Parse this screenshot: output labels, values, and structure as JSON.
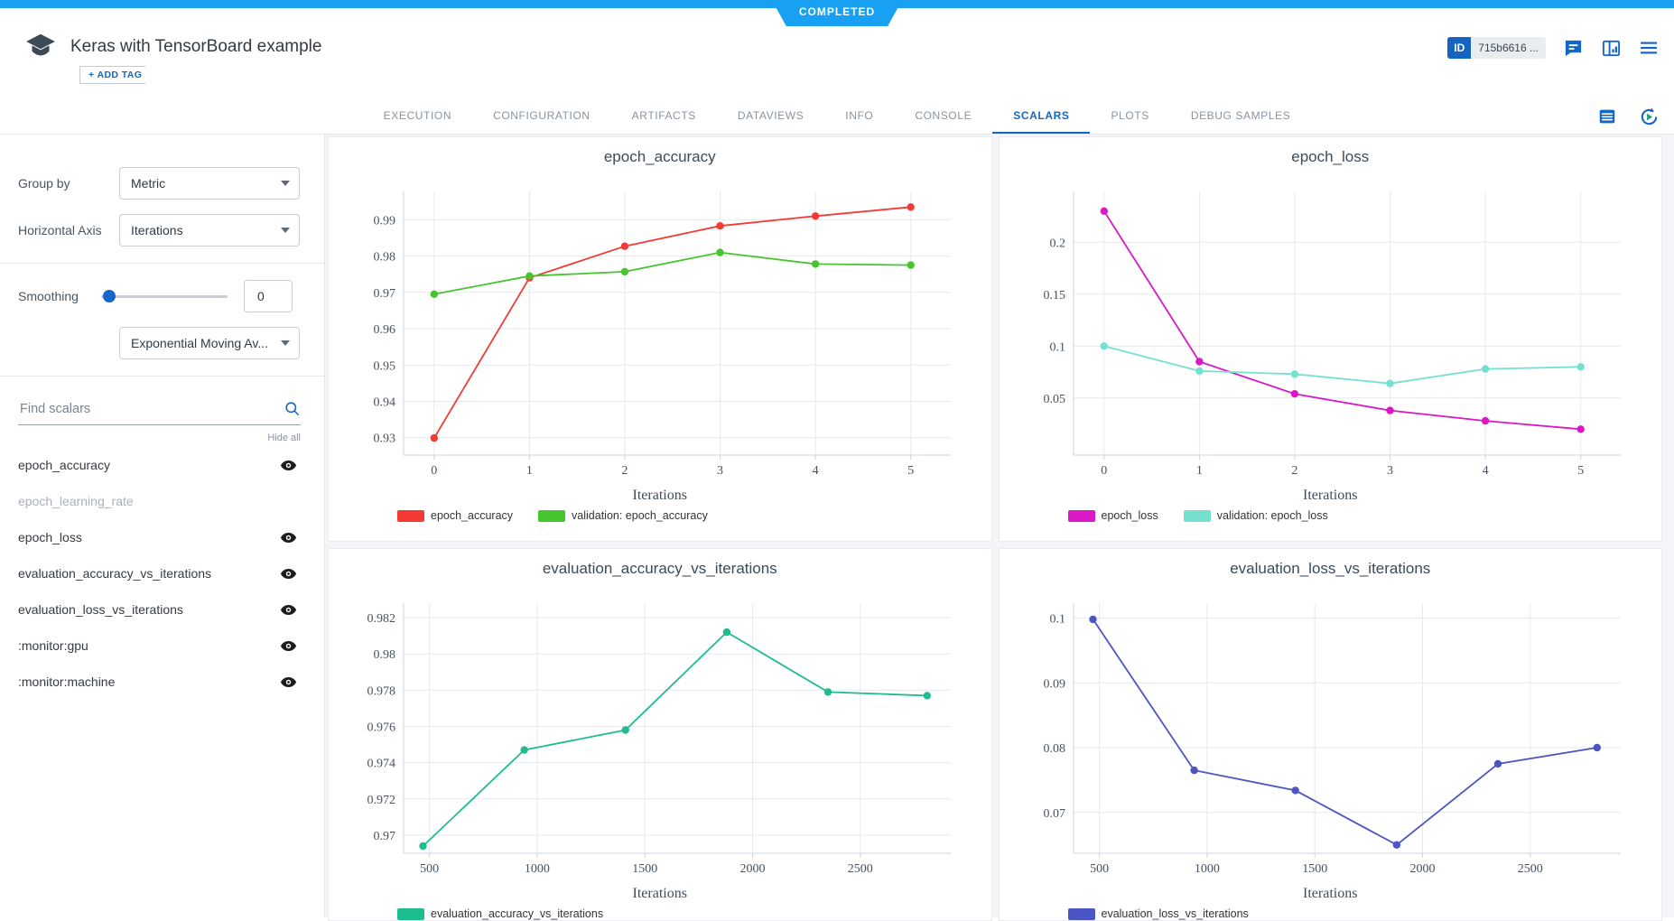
{
  "app": {
    "status": "COMPLETED",
    "title": "Keras with TensorBoard example",
    "add_tag": "+ ADD TAG",
    "id_label": "ID",
    "id_value": "715b6616 ...",
    "accent_color": "#18a1f2",
    "link_color": "#1467c6"
  },
  "icons": {
    "experiment": "graduation-cap",
    "comments": "message-lines",
    "layout": "split-panel",
    "menu": "hamburger",
    "table": "rows",
    "auto_refresh": "circular-arrow-play",
    "search": "magnifier",
    "visibility": "eye"
  },
  "tabs": {
    "items": [
      "EXECUTION",
      "CONFIGURATION",
      "ARTIFACTS",
      "DATAVIEWS",
      "INFO",
      "CONSOLE",
      "SCALARS",
      "PLOTS",
      "DEBUG SAMPLES"
    ],
    "active": "SCALARS"
  },
  "sidebar": {
    "group_by": {
      "label": "Group by",
      "value": "Metric"
    },
    "horizontal_axis": {
      "label": "Horizontal Axis",
      "value": "Iterations"
    },
    "smoothing": {
      "label": "Smoothing",
      "value": "0",
      "method": "Exponential Moving Av..."
    },
    "search": {
      "placeholder": "Find scalars"
    },
    "hide_all": "Hide all",
    "scalars": [
      {
        "name": "epoch_accuracy",
        "visible": true,
        "enabled": true
      },
      {
        "name": "epoch_learning_rate",
        "visible": false,
        "enabled": false
      },
      {
        "name": "epoch_loss",
        "visible": true,
        "enabled": true
      },
      {
        "name": "evaluation_accuracy_vs_iterations",
        "visible": true,
        "enabled": true
      },
      {
        "name": "evaluation_loss_vs_iterations",
        "visible": true,
        "enabled": true
      },
      {
        "name": ":monitor:gpu",
        "visible": true,
        "enabled": true
      },
      {
        "name": ":monitor:machine",
        "visible": true,
        "enabled": true
      }
    ]
  },
  "chart_data": [
    {
      "type": "line",
      "title": "epoch_accuracy",
      "xlabel": "Iterations",
      "x": [
        0,
        1,
        2,
        3,
        4,
        5
      ],
      "xticks": [
        0,
        1,
        2,
        3,
        4,
        5
      ],
      "xlim": [
        -0.32,
        5.42
      ],
      "yticks": [
        0.93,
        0.94,
        0.95,
        0.96,
        0.97,
        0.98,
        0.99
      ],
      "ylim": [
        0.9252,
        0.9978
      ],
      "grid": true,
      "legend_position": "bottom",
      "series": [
        {
          "name": "epoch_accuracy",
          "color": "#f23b35",
          "values": [
            0.9299,
            0.974,
            0.9827,
            0.9883,
            0.991,
            0.9935
          ]
        },
        {
          "name": "validation: epoch_accuracy",
          "color": "#46c52f",
          "values": [
            0.9695,
            0.9745,
            0.9757,
            0.981,
            0.9778,
            0.9775
          ]
        }
      ]
    },
    {
      "type": "line",
      "title": "epoch_loss",
      "xlabel": "Iterations",
      "x": [
        0,
        1,
        2,
        3,
        4,
        5
      ],
      "xticks": [
        0,
        1,
        2,
        3,
        4,
        5
      ],
      "xlim": [
        -0.32,
        5.42
      ],
      "yticks": [
        0.05,
        0.1,
        0.15,
        0.2
      ],
      "ylim": [
        -0.005,
        0.249
      ],
      "grid": true,
      "legend_position": "bottom",
      "series": [
        {
          "name": "epoch_loss",
          "color": "#da18c5",
          "values": [
            0.23,
            0.085,
            0.054,
            0.038,
            0.028,
            0.02
          ]
        },
        {
          "name": "validation: epoch_loss",
          "color": "#74e1cf",
          "values": [
            0.1,
            0.076,
            0.073,
            0.064,
            0.078,
            0.08
          ]
        }
      ]
    },
    {
      "type": "line",
      "title": "evaluation_accuracy_vs_iterations",
      "xlabel": "Iterations",
      "x": [
        470,
        940,
        1410,
        1880,
        2350,
        2810
      ],
      "xticks": [
        500,
        1000,
        1500,
        2000,
        2500
      ],
      "xlim": [
        380,
        2920
      ],
      "yticks": [
        0.97,
        0.972,
        0.974,
        0.976,
        0.978,
        0.98,
        0.982
      ],
      "ylim": [
        0.969,
        0.9828
      ],
      "grid": true,
      "legend_position": "bottom",
      "series": [
        {
          "name": "evaluation_accuracy_vs_iterations",
          "color": "#1ebd90",
          "values": [
            0.9694,
            0.9747,
            0.9758,
            0.9812,
            0.9779,
            0.9777
          ]
        }
      ]
    },
    {
      "type": "line",
      "title": "evaluation_loss_vs_iterations",
      "xlabel": "Iterations",
      "x": [
        470,
        940,
        1410,
        1880,
        2350,
        2810
      ],
      "xticks": [
        500,
        1000,
        1500,
        2000,
        2500
      ],
      "xlim": [
        380,
        2920
      ],
      "yticks": [
        0.07,
        0.08,
        0.09,
        0.1
      ],
      "ylim": [
        0.0637,
        0.1023
      ],
      "grid": true,
      "legend_position": "bottom",
      "series": [
        {
          "name": "evaluation_loss_vs_iterations",
          "color": "#4c55c4",
          "values": [
            0.0998,
            0.0765,
            0.0734,
            0.065,
            0.0775,
            0.08
          ]
        }
      ]
    }
  ]
}
